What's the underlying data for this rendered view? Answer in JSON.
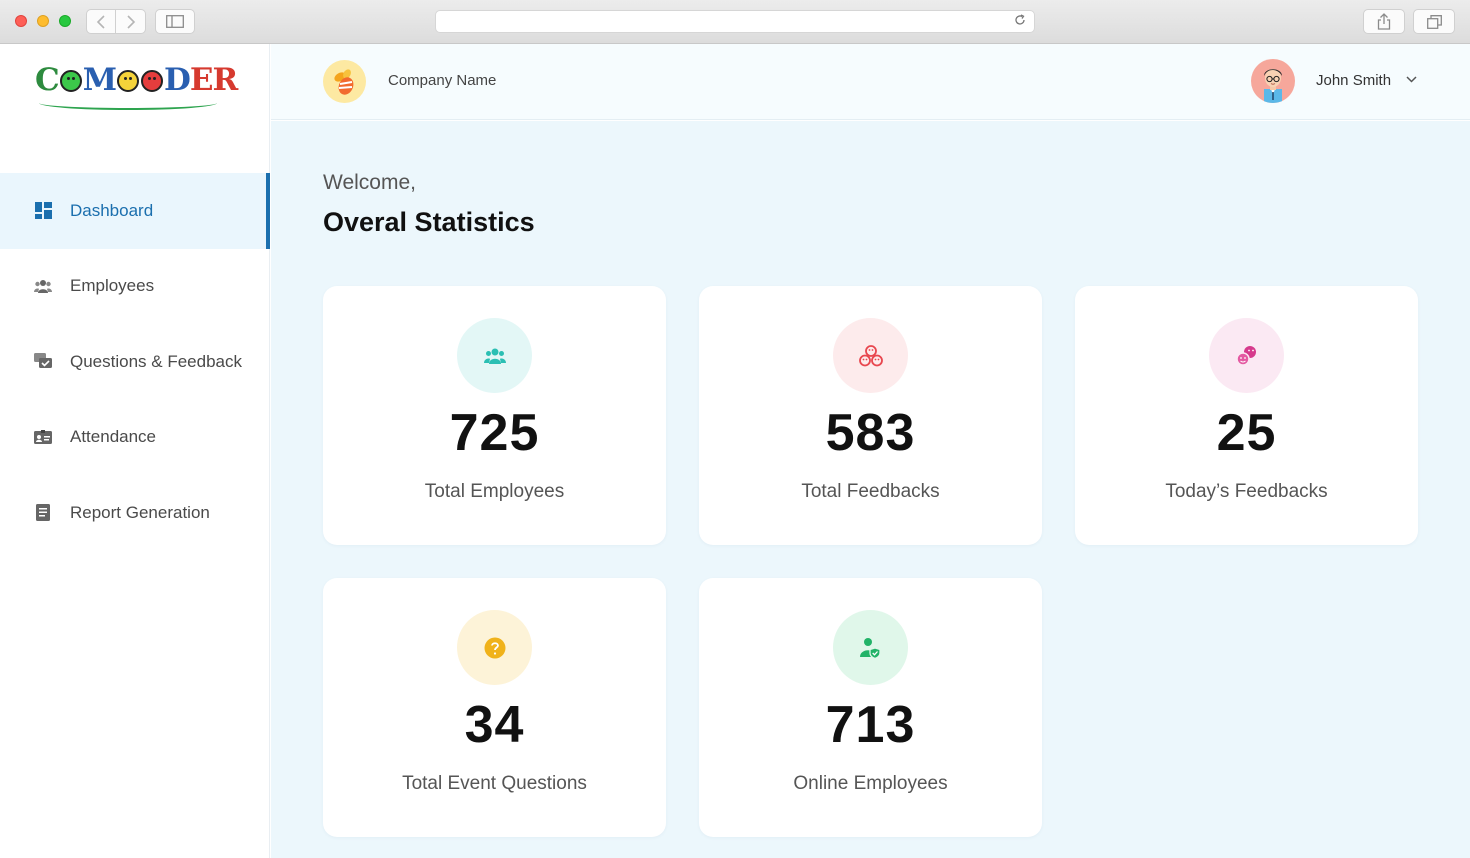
{
  "browser": {
    "back_icon": "chevron-left-icon",
    "forward_icon": "chevron-right-icon",
    "sidebar_icon": "sidebar-icon",
    "reload_icon": "reload-icon",
    "share_icon": "share-icon",
    "tabs_icon": "tabs-icon"
  },
  "brand": {
    "logo_letters": [
      "C",
      "M",
      "D",
      "E",
      "R"
    ],
    "colors": {
      "green": "#2e8b3f",
      "blue": "#2a5fb0",
      "red": "#d63a2f"
    }
  },
  "sidebar": {
    "items": [
      {
        "label": "Dashboard",
        "icon": "dashboard-icon",
        "active": true
      },
      {
        "label": "Employees",
        "icon": "employees-icon",
        "active": false
      },
      {
        "label": "Questions & Feedback",
        "icon": "chat-icon",
        "active": false
      },
      {
        "label": "Attendance",
        "icon": "id-card-icon",
        "active": false
      },
      {
        "label": "Report Generation",
        "icon": "report-icon",
        "active": false
      }
    ]
  },
  "header": {
    "company_name": "Company Name",
    "user_name": "John Smith"
  },
  "main": {
    "welcome": "Welcome,",
    "title": "Overal Statistics",
    "cards": [
      {
        "value": "725",
        "label": "Total Employees",
        "icon": "users-icon",
        "color": "#2bbfb3",
        "bg": "#e3f7f6"
      },
      {
        "value": "583",
        "label": "Total Feedbacks",
        "icon": "faces-icon",
        "color": "#e8474f",
        "bg": "#fdebec"
      },
      {
        "value": "25",
        "label": "Today’s Feedbacks",
        "icon": "emoji-pair-icon",
        "color": "#d63a8c",
        "bg": "#fbe9f3"
      },
      {
        "value": "34",
        "label": "Total Event Questions",
        "icon": "question-icon",
        "color": "#f0b21b",
        "bg": "#fdf3d8"
      },
      {
        "value": "713",
        "label": "Online Employees",
        "icon": "user-online-icon",
        "color": "#22b368",
        "bg": "#e0f7ea"
      }
    ]
  }
}
